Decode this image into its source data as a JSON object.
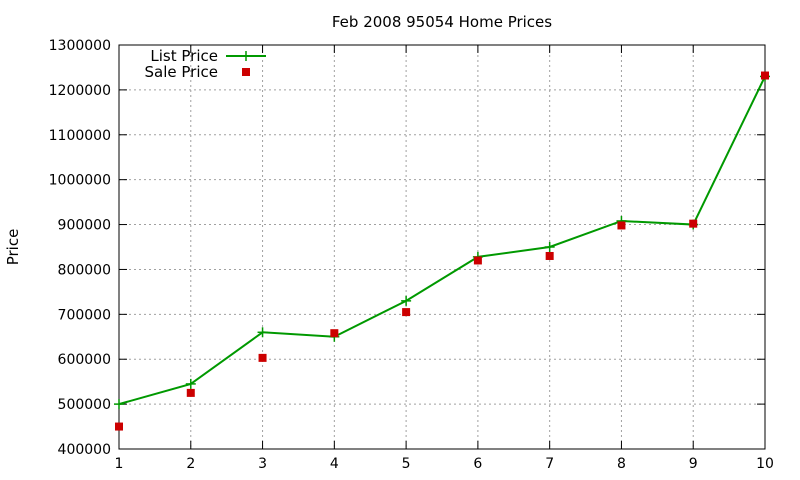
{
  "chart_data": {
    "type": "line",
    "title": "Feb 2008 95054 Home Prices",
    "xlabel": "",
    "ylabel": "Price",
    "x": [
      1,
      2,
      3,
      4,
      5,
      6,
      7,
      8,
      9,
      10
    ],
    "xlim": [
      1,
      10
    ],
    "ylim": [
      400000,
      1300000
    ],
    "xticks": [
      "1",
      "2",
      "3",
      "4",
      "5",
      "6",
      "7",
      "8",
      "9",
      "10"
    ],
    "yticks": [
      "400000",
      "500000",
      "600000",
      "700000",
      "800000",
      "900000",
      "1000000",
      "1100000",
      "1200000",
      "1300000"
    ],
    "grid": true,
    "legend_position": "top-left",
    "series": [
      {
        "name": "List Price",
        "style": "line-with-plus-markers",
        "color": "#009900",
        "values": [
          500000,
          545000,
          660000,
          650000,
          730000,
          828000,
          850000,
          908000,
          900000,
          1230000
        ]
      },
      {
        "name": "Sale Price",
        "style": "square-markers",
        "color": "#cc0000",
        "values": [
          450000,
          525000,
          603000,
          658000,
          705000,
          820000,
          830000,
          898000,
          902000,
          1232000
        ]
      }
    ]
  }
}
